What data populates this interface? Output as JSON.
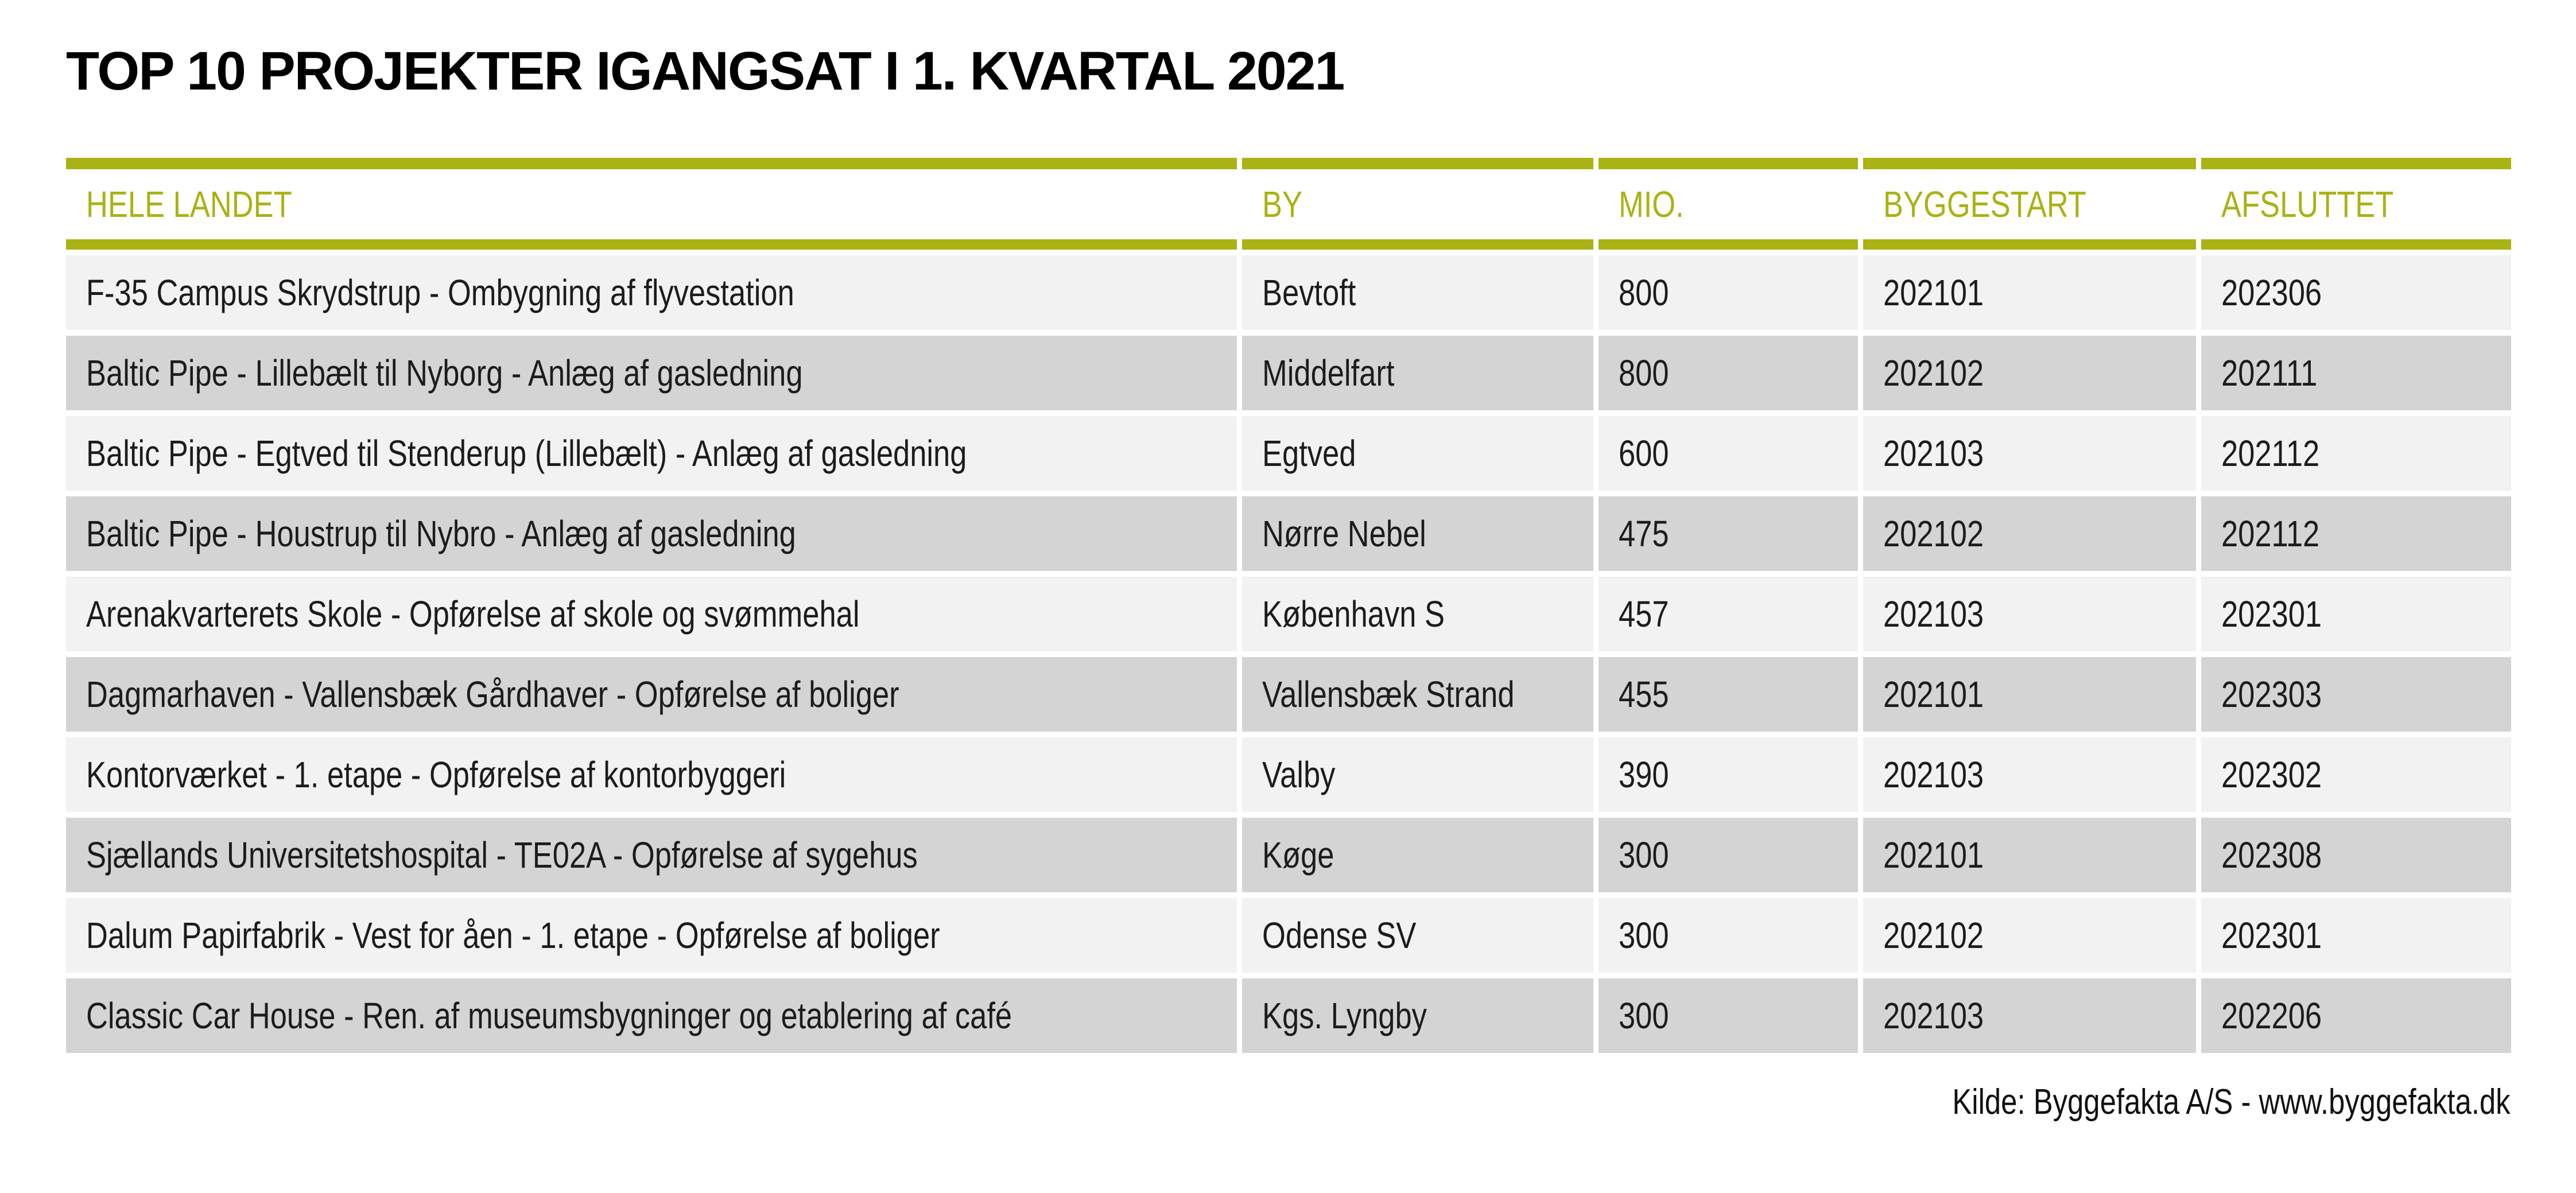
{
  "title": "TOP 10 PROJEKTER IGANGSAT I 1. KVARTAL 2021",
  "chart_data": {
    "type": "table",
    "title": "TOP 10 PROJEKTER IGANGSAT I 1. KVARTAL 2021",
    "columns": [
      "HELE LANDET",
      "BY",
      "MIO.",
      "BYGGESTART",
      "AFSLUTTET"
    ],
    "rows": [
      [
        "F-35 Campus Skrydstrup - Ombygning af flyvestation",
        "Bevtoft",
        "800",
        "202101",
        "202306"
      ],
      [
        "Baltic Pipe - Lillebælt til Nyborg - Anlæg af gasledning",
        "Middelfart",
        "800",
        "202102",
        "202111"
      ],
      [
        "Baltic Pipe - Egtved til Stenderup (Lillebælt) - Anlæg af gasledning",
        "Egtved",
        "600",
        "202103",
        "202112"
      ],
      [
        "Baltic Pipe - Houstrup til Nybro - Anlæg af gasledning",
        "Nørre Nebel",
        "475",
        "202102",
        "202112"
      ],
      [
        "Arenakvarterets Skole - Opførelse af skole og svømmehal",
        "København S",
        "457",
        "202103",
        "202301"
      ],
      [
        "Dagmarhaven - Vallensbæk Gårdhaver - Opførelse af boliger",
        "Vallensbæk Strand",
        "455",
        "202101",
        "202303"
      ],
      [
        "Kontorværket - 1. etape - Opførelse af kontorbyggeri",
        "Valby",
        "390",
        "202103",
        "202302"
      ],
      [
        "Sjællands Universitetshospital - TE02A - Opførelse af sygehus",
        "Køge",
        "300",
        "202101",
        "202308"
      ],
      [
        "Dalum Papirfabrik - Vest for åen - 1. etape - Opførelse af boliger",
        "Odense SV",
        "300",
        "202102",
        "202301"
      ],
      [
        "Classic Car House - Ren. af museumsbygninger og etablering af café",
        "Kgs. Lyngby",
        "300",
        "202103",
        "202206"
      ]
    ],
    "legend_position": "none",
    "grid": "off"
  },
  "footer": {
    "source": "Kilde: Byggefakta A/S - www.byggefakta.dk"
  },
  "colors": {
    "accent": "#aab214",
    "row_light": "#f2f2f2",
    "row_dark": "#d4d4d4",
    "text": "#1c1c1c",
    "title": "#000000",
    "background": "#ffffff"
  }
}
